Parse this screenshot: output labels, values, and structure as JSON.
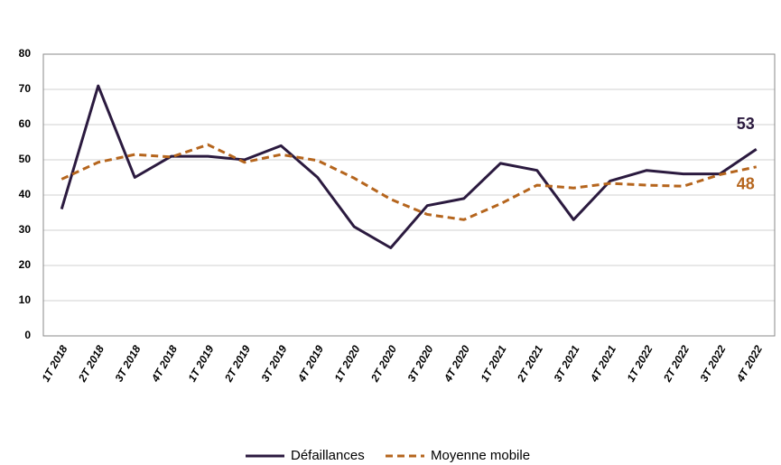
{
  "chart_data": {
    "type": "line",
    "categories": [
      "1T 2018",
      "2T 2018",
      "3T 2018",
      "4T 2018",
      "1T 2019",
      "2T 2019",
      "3T 2019",
      "4T 2019",
      "1T 2020",
      "2T 2020",
      "3T 2020",
      "4T 2020",
      "1T 2021",
      "2T 2021",
      "3T 2021",
      "4T 2021",
      "1T 2022",
      "2T 2022",
      "3T 2022",
      "4T 2022"
    ],
    "series": [
      {
        "name": "Défaillances",
        "color": "#2b1a3f",
        "dashed": false,
        "values": [
          36,
          71,
          45,
          51,
          51,
          50,
          54,
          45,
          31,
          25,
          37,
          39,
          49,
          47,
          33,
          44,
          47,
          46,
          46,
          53
        ]
      },
      {
        "name": "Moyenne mobile",
        "color": "#b5651d",
        "dashed": true,
        "values": [
          44.5,
          49.3,
          51.5,
          50.8,
          54.3,
          49.3,
          51.5,
          49.8,
          44.8,
          38.8,
          34.5,
          33,
          37.5,
          42.8,
          42,
          43.3,
          42.8,
          42.5,
          45.8,
          48
        ]
      }
    ],
    "ylim": [
      0,
      80
    ],
    "yticks": [
      0,
      10,
      20,
      30,
      40,
      50,
      60,
      70,
      80
    ],
    "grid": true
  }
}
